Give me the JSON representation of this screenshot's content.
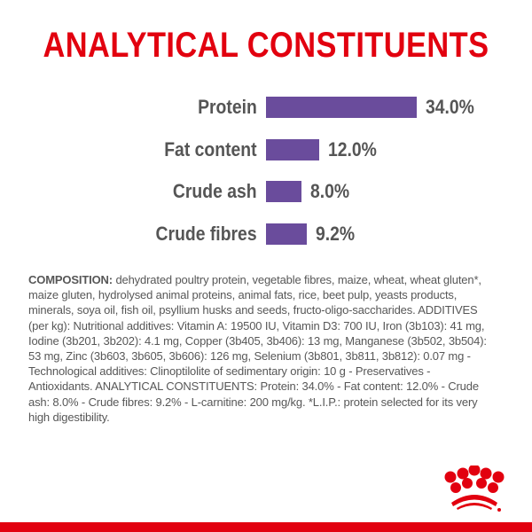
{
  "title": "ANALYTICAL CONSTITUENTS",
  "colors": {
    "title": "#e2000f",
    "bar": "#6a4c9c",
    "label": "#555555",
    "text": "#575757",
    "brand_red": "#e2000f"
  },
  "chart_data": {
    "type": "bar",
    "orientation": "horizontal",
    "title": "ANALYTICAL CONSTITUENTS",
    "categories": [
      "Protein",
      "Fat content",
      "Crude ash",
      "Crude fibres"
    ],
    "values": [
      34.0,
      12.0,
      8.0,
      9.2
    ],
    "value_labels": [
      "34.0%",
      "12.0%",
      "8.0%",
      "9.2%"
    ],
    "unit": "%",
    "xlabel": "",
    "ylabel": "",
    "grid": false,
    "legend": "none"
  },
  "composition": {
    "label": "COMPOSITION:",
    "text": " dehydrated poultry protein, vegetable fibres, maize, wheat, wheat gluten*, maize gluten, hydrolysed animal proteins, animal fats, rice, beet pulp, yeasts products, minerals, soya oil, fish oil, psyllium husks and seeds, fructo-oligo-saccharides. ADDITIVES (per kg): Nutritional additives: Vitamin A: 19500 IU, Vitamin D3: 700 IU, Iron (3b103): 41 mg, Iodine (3b201, 3b202): 4.1 mg, Copper (3b405, 3b406): 13 mg, Manganese (3b502, 3b504): 53 mg, Zinc (3b603, 3b605, 3b606): 126 mg, Selenium (3b801, 3b811, 3b812): 0.07 mg - Technological additives: Clinoptilolite of sedimentary origin: 10 g - Preservatives - Antioxidants. ANALYTICAL CONSTITUENTS: Protein: 34.0% - Fat content: 12.0% - Crude ash: 8.0% - Crude fibres: 9.2% - L-carnitine: 200 mg/kg. *L.I.P.: protein selected for its very high digestibility."
  },
  "logo": {
    "name": "royal-canin-crown-logo"
  }
}
